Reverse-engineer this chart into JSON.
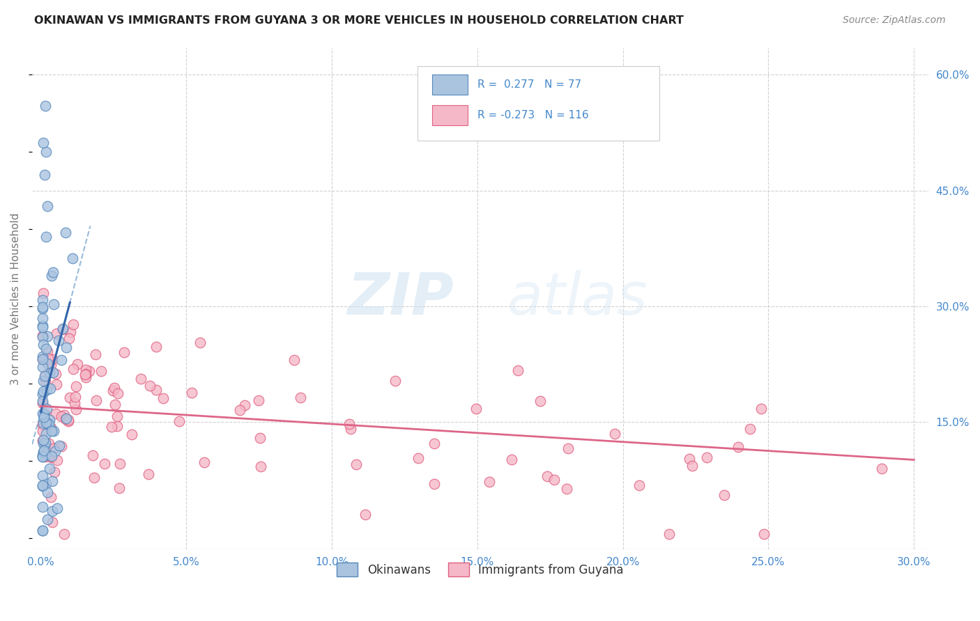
{
  "title": "OKINAWAN VS IMMIGRANTS FROM GUYANA 3 OR MORE VEHICLES IN HOUSEHOLD CORRELATION CHART",
  "source": "Source: ZipAtlas.com",
  "ylabel": "3 or more Vehicles in Household",
  "legend_label1": "Okinawans",
  "legend_label2": "Immigrants from Guyana",
  "r1": 0.277,
  "n1": 77,
  "r2": -0.273,
  "n2": 116,
  "color_blue": "#aac4e0",
  "color_blue_dark": "#5588bb",
  "color_pink": "#f5b8c8",
  "color_pink_dark": "#e06080",
  "color_line_blue": "#3366aa",
  "color_line_pink": "#dd6688",
  "color_dashed": "#99bbdd",
  "xlim": [
    0.0,
    0.3
  ],
  "ylim": [
    0.0,
    0.6
  ],
  "watermark_zip": "ZIP",
  "watermark_atlas": "atlas",
  "title_color": "#222222",
  "axis_label_color": "#4488cc",
  "background_color": "#ffffff",
  "grid_color": "#cccccc"
}
